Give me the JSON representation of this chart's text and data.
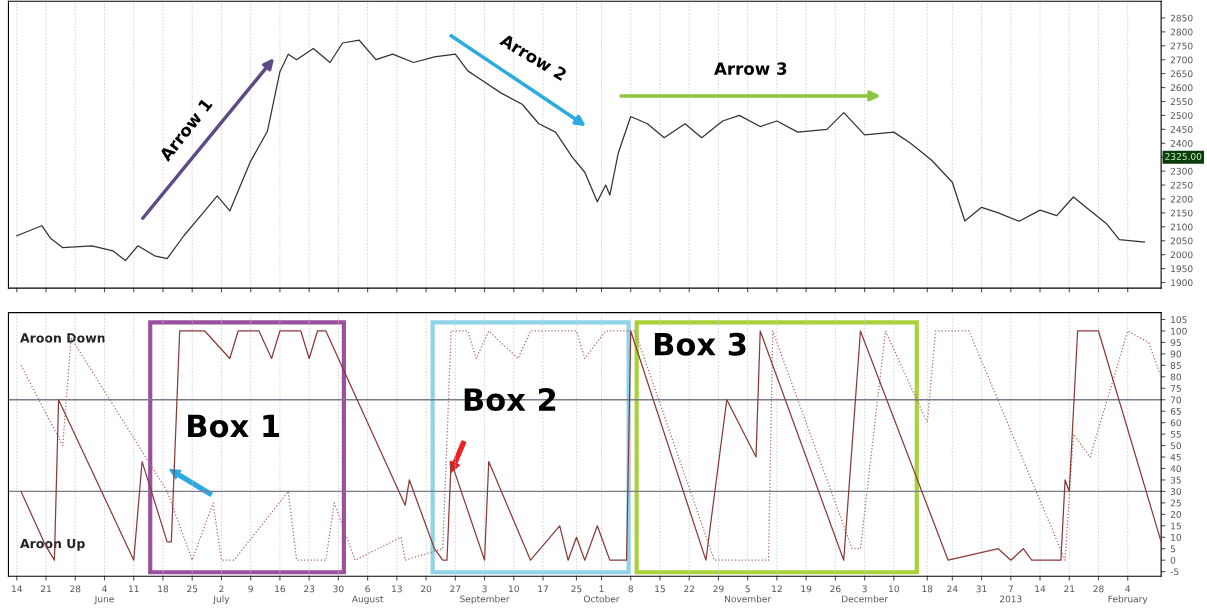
{
  "chart_data": [
    {
      "type": "line",
      "grid": "x",
      "tick_labels": "y",
      "xlim": [
        "2012-05-12",
        "2013-02-12"
      ],
      "ylim": [
        1880,
        2910
      ],
      "yticks": [
        1900,
        1950,
        2000,
        2050,
        2100,
        2150,
        2200,
        2250,
        2300,
        {
          "value": 2350,
          "label": null
        },
        2400,
        2450,
        2500,
        2550,
        2600,
        2650,
        2700,
        2750,
        2800,
        2850
      ],
      "xticks": [
        {
          "value": "2012-05-14",
          "label": null
        },
        {
          "value": "2012-05-21",
          "label": null
        },
        {
          "value": "2012-05-28",
          "label": null
        },
        {
          "value": "2012-06-04",
          "label": null
        },
        {
          "value": "2012-06-11",
          "label": null
        },
        {
          "value": "2012-06-18",
          "label": null
        },
        {
          "value": "2012-06-25",
          "label": null
        },
        {
          "value": "2012-07-02",
          "label": null
        },
        {
          "value": "2012-07-09",
          "label": null
        },
        {
          "value": "2012-07-16",
          "label": null
        },
        {
          "value": "2012-07-23",
          "label": null
        },
        {
          "value": "2012-07-30",
          "label": null
        },
        {
          "value": "2012-08-06",
          "label": null
        },
        {
          "value": "2012-08-13",
          "label": null
        },
        {
          "value": "2012-08-20",
          "label": null
        },
        {
          "value": "2012-08-27",
          "label": null
        },
        {
          "value": "2012-09-03",
          "label": null
        },
        {
          "value": "2012-09-10",
          "label": null
        },
        {
          "value": "2012-09-17",
          "label": null
        },
        {
          "value": "2012-09-25",
          "label": null
        },
        {
          "value": "2012-10-01",
          "label": null
        },
        {
          "value": "2012-10-08",
          "label": null
        },
        {
          "value": "2012-10-15",
          "label": null
        },
        {
          "value": "2012-10-22",
          "label": null
        },
        {
          "value": "2012-10-29",
          "label": null
        },
        {
          "value": "2012-11-05",
          "label": null
        },
        {
          "value": "2012-11-12",
          "label": null
        },
        {
          "value": "2012-11-19",
          "label": null
        },
        {
          "value": "2012-11-26",
          "label": null
        },
        {
          "value": "2012-12-03",
          "label": null
        },
        {
          "value": "2012-12-10",
          "label": null
        },
        {
          "value": "2012-12-18",
          "label": null
        },
        {
          "value": "2012-12-24",
          "label": null
        },
        {
          "value": "2012-12-31",
          "label": null
        },
        {
          "value": "2013-01-07",
          "label": null
        },
        {
          "value": "2013-01-14",
          "label": null
        },
        {
          "value": "2013-01-21",
          "label": null
        },
        {
          "value": "2013-01-28",
          "label": null
        },
        {
          "value": "2013-02-04",
          "label": null
        }
      ],
      "annotations": [
        "Arrow 1",
        "Arrow 2",
        "Arrow 3",
        "2325.00"
      ],
      "series": [
        {
          "color": "#333333",
          "x": [
            "2012-05-14",
            "2012-05-20",
            "2012-05-22",
            "2012-05-25",
            "2012-06-01",
            "2012-06-06",
            "2012-06-09",
            "2012-06-12",
            "2012-06-16",
            "2012-06-19",
            "2012-06-23",
            "2012-06-28",
            "2012-07-01",
            "2012-07-04",
            "2012-07-09",
            "2012-07-13",
            "2012-07-16",
            "2012-07-18",
            "2012-07-20",
            "2012-07-24",
            "2012-07-28",
            "2012-07-31",
            "2012-08-04",
            "2012-08-08",
            "2012-08-12",
            "2012-08-17",
            "2012-08-22",
            "2012-08-27",
            "2012-08-30",
            "2012-09-02",
            "2012-09-07",
            "2012-09-12",
            "2012-09-16",
            "2012-09-20",
            "2012-09-24",
            "2012-09-27",
            "2012-09-30",
            "2012-10-02",
            "2012-10-03",
            "2012-10-05",
            "2012-10-08",
            "2012-10-12",
            "2012-10-16",
            "2012-10-21",
            "2012-10-25",
            "2012-10-30",
            "2012-11-03",
            "2012-11-08",
            "2012-11-12",
            "2012-11-17",
            "2012-11-24",
            "2012-11-28",
            "2012-12-03",
            "2012-12-10",
            "2012-12-14",
            "2012-12-19",
            "2012-12-24",
            "2012-12-27",
            "2012-12-31",
            "2013-01-04",
            "2013-01-09",
            "2013-01-14",
            "2013-01-18",
            "2013-01-22",
            "2013-01-25",
            "2013-01-30",
            "2013-02-02",
            "2013-02-08"
          ],
          "values": [
            2068,
            2104,
            2060,
            2025,
            2032,
            2014,
            1979,
            2032,
            1996,
            1986,
            2068,
            2157,
            2211,
            2157,
            2336,
            2443,
            2657,
            2720,
            2700,
            2740,
            2690,
            2760,
            2770,
            2700,
            2720,
            2690,
            2710,
            2720,
            2660,
            2630,
            2580,
            2540,
            2470,
            2440,
            2350,
            2296,
            2190,
            2250,
            2214,
            2364,
            2496,
            2470,
            2420,
            2470,
            2420,
            2480,
            2500,
            2460,
            2480,
            2440,
            2450,
            2510,
            2430,
            2440,
            2400,
            2340,
            2260,
            2121,
            2170,
            2150,
            2120,
            2160,
            2140,
            2207,
            2170,
            2110,
            2054,
            2045
          ]
        }
      ]
    },
    {
      "type": "line",
      "grid": "x",
      "xlim": [
        "2012-05-12",
        "2013-02-12"
      ],
      "ylim": [
        -7,
        108
      ],
      "yticks": [
        -5,
        0,
        5,
        10,
        15,
        20,
        25,
        30,
        35,
        40,
        45,
        50,
        55,
        60,
        65,
        70,
        75,
        80,
        85,
        90,
        95,
        100,
        105
      ],
      "xticks": [
        {
          "value": "2012-05-14",
          "label": "14"
        },
        {
          "value": "2012-05-21",
          "label": "21"
        },
        {
          "value": "2012-05-28",
          "label": "28"
        },
        {
          "value": "2012-06-04",
          "label": "4\nJune"
        },
        {
          "value": "2012-06-11",
          "label": "11"
        },
        {
          "value": "2012-06-18",
          "label": "18"
        },
        {
          "value": "2012-06-25",
          "label": "25"
        },
        {
          "value": "2012-07-02",
          "label": "2\nJuly"
        },
        {
          "value": "2012-07-09",
          "label": "9"
        },
        {
          "value": "2012-07-16",
          "label": "16"
        },
        {
          "value": "2012-07-23",
          "label": "23"
        },
        {
          "value": "2012-07-30",
          "label": "30"
        },
        {
          "value": "2012-08-06",
          "label": "6\nAugust"
        },
        {
          "value": "2012-08-13",
          "label": "13"
        },
        {
          "value": "2012-08-20",
          "label": "20"
        },
        {
          "value": "2012-08-27",
          "label": "27"
        },
        {
          "value": "2012-09-03",
          "label": "3\nSeptember"
        },
        {
          "value": "2012-09-10",
          "label": "10"
        },
        {
          "value": "2012-09-17",
          "label": "17"
        },
        {
          "value": "2012-09-25",
          "label": "25"
        },
        {
          "value": "2012-10-01",
          "label": "1\nOctober"
        },
        {
          "value": "2012-10-08",
          "label": "8"
        },
        {
          "value": "2012-10-15",
          "label": "15"
        },
        {
          "value": "2012-10-22",
          "label": "22"
        },
        {
          "value": "2012-10-29",
          "label": "29"
        },
        {
          "value": "2012-11-05",
          "label": "5\nNovember"
        },
        {
          "value": "2012-11-12",
          "label": "12"
        },
        {
          "value": "2012-11-19",
          "label": "19"
        },
        {
          "value": "2012-11-26",
          "label": "26"
        },
        {
          "value": "2012-12-03",
          "label": "3\nDecember"
        },
        {
          "value": "2012-12-10",
          "label": "10"
        },
        {
          "value": "2012-12-18",
          "label": "18"
        },
        {
          "value": "2012-12-24",
          "label": "24"
        },
        {
          "value": "2012-12-31",
          "label": "31"
        },
        {
          "value": "2013-01-07",
          "label": "7\n2013"
        },
        {
          "value": "2013-01-14",
          "label": "14"
        },
        {
          "value": "2013-01-21",
          "label": "21"
        },
        {
          "value": "2013-01-28",
          "label": "28"
        },
        {
          "value": "2013-02-04",
          "label": "4\nFebruary"
        }
      ],
      "ref_lines": [
        {
          "axis": "y",
          "value": 70,
          "color": "#7a7a8a"
        },
        {
          "axis": "y",
          "value": 30,
          "color": "#7a7a8a"
        }
      ],
      "annotations": [
        "Box 1",
        "Box 2",
        "Box 3"
      ],
      "series": [
        {
          "name": "Aroon Down",
          "color": "#a86b6b",
          "line_style": "dotted",
          "x": [
            "2012-05-15",
            "2012-05-25",
            "2012-05-27",
            "2012-06-19",
            "2012-06-25",
            "2012-06-30",
            "2012-07-02",
            "2012-07-05",
            "2012-07-18",
            "2012-07-20",
            "2012-07-27",
            "2012-07-29",
            "2012-08-03",
            "2012-08-14",
            "2012-08-15",
            "2012-08-24",
            "2012-08-26",
            "2012-08-30",
            "2012-09-01",
            "2012-09-04",
            "2012-09-11",
            "2012-09-14",
            "2012-09-25",
            "2012-09-27",
            "2012-10-02",
            "2012-10-07",
            "2012-10-09",
            "2012-10-28",
            "2012-11-10",
            "2012-11-11",
            "2012-11-30",
            "2012-12-02",
            "2012-12-08",
            "2012-12-18",
            "2012-12-20",
            "2012-12-28",
            "2013-01-20",
            "2013-01-22",
            "2013-01-26",
            "2013-02-04",
            "2013-02-09",
            "2013-02-12"
          ],
          "values": [
            85,
            50,
            97,
            30,
            0,
            25,
            0,
            0,
            30,
            0,
            0,
            25,
            0,
            10,
            0,
            5,
            100,
            100,
            88,
            100,
            88,
            100,
            100,
            88,
            100,
            100,
            100,
            0,
            0,
            100,
            5,
            5,
            100,
            60,
            100,
            100,
            0,
            55,
            45,
            100,
            95,
            80
          ]
        },
        {
          "name": "Aroon Up",
          "color": "#8b3a3a",
          "line_style": "solid",
          "x": [
            "2012-05-15",
            "2012-05-21",
            "2012-05-23",
            "2012-05-24",
            "2012-06-11",
            "2012-06-13",
            "2012-06-19",
            "2012-06-20",
            "2012-06-22",
            "2012-06-28",
            "2012-07-04",
            "2012-07-06",
            "2012-07-11",
            "2012-07-14",
            "2012-07-16",
            "2012-07-21",
            "2012-07-23",
            "2012-07-25",
            "2012-07-27",
            "2012-08-15",
            "2012-08-16",
            "2012-08-22",
            "2012-08-24",
            "2012-08-25",
            "2012-08-26",
            "2012-09-03",
            "2012-09-04",
            "2012-09-14",
            "2012-09-21",
            "2012-09-23",
            "2012-09-25",
            "2012-09-27",
            "2012-09-30",
            "2012-10-03",
            "2012-10-07",
            "2012-10-08",
            "2012-10-26",
            "2012-10-31",
            "2012-11-07",
            "2012-11-08",
            "2012-11-28",
            "2012-12-02",
            "2012-12-23",
            "2013-01-04",
            "2013-01-07",
            "2013-01-10",
            "2013-01-12",
            "2013-01-19",
            "2013-01-20",
            "2013-01-21",
            "2013-01-23",
            "2013-01-28",
            "2013-02-12"
          ],
          "values": [
            30,
            6,
            0,
            70,
            0,
            43,
            8,
            8,
            100,
            100,
            88,
            100,
            100,
            88,
            100,
            100,
            88,
            100,
            100,
            24,
            35,
            5,
            0,
            0,
            43,
            0,
            43,
            0,
            15,
            0,
            10,
            0,
            15,
            0,
            0,
            100,
            0,
            70,
            45,
            100,
            0,
            100,
            0,
            5,
            0,
            5,
            0,
            0,
            35,
            30,
            100,
            100,
            8
          ]
        }
      ]
    }
  ]
}
